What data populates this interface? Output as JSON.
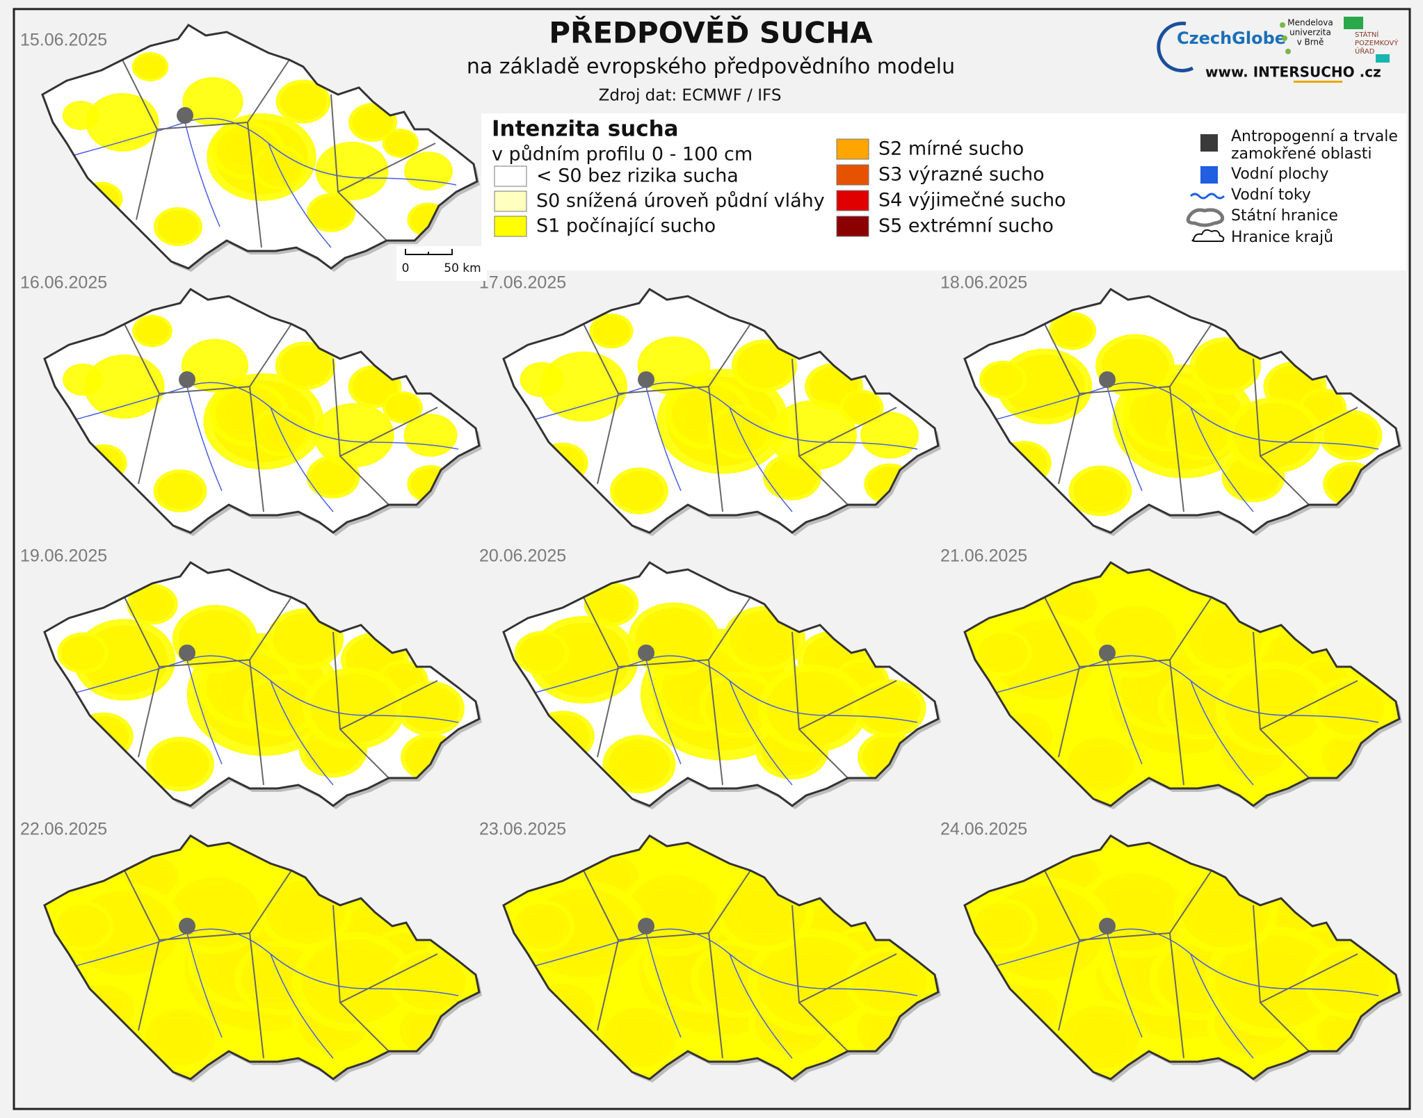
{
  "header": {
    "title": "PŘEDPOVĚĎ SUCHA",
    "subtitle": "na základě evropského předpovědního modelu",
    "source": "Zdroj dat: ECMWF / IFS"
  },
  "logos": {
    "czechglobe": "CzechGlobe",
    "mendel": [
      "Mendelova",
      "univerzita",
      "v Brně"
    ],
    "spu": [
      "STÁTNÍ",
      "POZEMKOVÝ",
      "ÚŘAD"
    ],
    "website": "www. INTERSUCHO .cz"
  },
  "legend": {
    "title": "Intenzita sucha",
    "subtitle": "v půdním profilu 0 - 100 cm",
    "items": [
      {
        "label": "< S0 bez rizika sucha",
        "color": "#ffffff"
      },
      {
        "label": "S0 snížená úroveň půdní vláhy",
        "color": "#ffffc0"
      },
      {
        "label": "S1 počínající sucho",
        "color": "#ffff00"
      },
      {
        "label": "S2 mírné sucho",
        "color": "#ffa500"
      },
      {
        "label": "S3 výrazné sucho",
        "color": "#e65300"
      },
      {
        "label": "S4 výjimečné sucho",
        "color": "#e00000"
      },
      {
        "label": "S5 extrémní sucho",
        "color": "#8b0000"
      }
    ],
    "other": [
      "Antropogenní a trvale",
      "zamokřené oblasti",
      "Vodní plochy",
      "Vodní toky",
      "Státní hranice",
      "Hranice krajů"
    ]
  },
  "scale_bar": [
    "0",
    "50 km"
  ],
  "maps": [
    {
      "date": "15.06.2025"
    },
    {
      "date": "16.06.2025"
    },
    {
      "date": "17.06.2025"
    },
    {
      "date": "18.06.2025"
    },
    {
      "date": "19.06.2025"
    },
    {
      "date": "20.06.2025"
    },
    {
      "date": "21.06.2025"
    },
    {
      "date": "22.06.2025"
    },
    {
      "date": "23.06.2025"
    },
    {
      "date": "24.06.2025"
    }
  ]
}
